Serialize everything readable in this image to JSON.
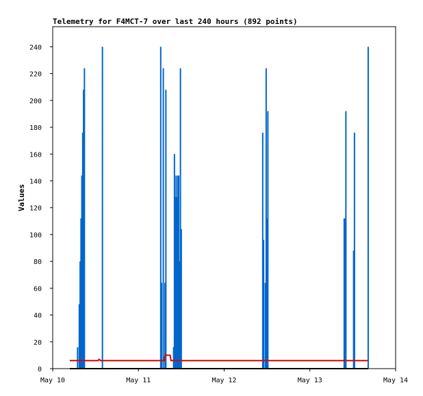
{
  "chart_data": {
    "type": "line",
    "title": "Telemetry for F4MCT-7 over last 240 hours (892 points)",
    "xlabel": "",
    "ylabel": "Values",
    "x_tick_labels": [
      "May 10",
      "May 11",
      "May 12",
      "May 13",
      "May 14"
    ],
    "x_range_days": [
      0,
      4
    ],
    "ylim": [
      0,
      255
    ],
    "y_ticks": [
      0,
      20,
      40,
      60,
      80,
      100,
      120,
      140,
      160,
      180,
      200,
      220,
      240
    ],
    "grid": false,
    "colors": {
      "spikes": "#0066cc",
      "baseline": "#e00000",
      "zero": "#000000",
      "axes": "#000000"
    },
    "series": [
      {
        "color": "#0066cc",
        "style": "spikes",
        "x_days": [
          0.29,
          0.31,
          0.32,
          0.33,
          0.34,
          0.35,
          0.36,
          0.37,
          0.58,
          1.26,
          1.27,
          1.29,
          1.31,
          1.32,
          1.41,
          1.42,
          1.43,
          1.44,
          1.45,
          1.46,
          1.47,
          1.48,
          1.49,
          1.5,
          2.45,
          2.46,
          2.48,
          2.49,
          2.5,
          2.51,
          3.4,
          3.41,
          3.42,
          3.51,
          3.52,
          3.68
        ],
        "values": [
          16,
          48,
          80,
          112,
          144,
          176,
          208,
          224,
          240,
          240,
          64,
          224,
          64,
          208,
          16,
          160,
          128,
          144,
          128,
          144,
          144,
          80,
          224,
          104,
          176,
          96,
          64,
          224,
          112,
          192,
          112,
          112,
          192,
          88,
          176,
          240
        ]
      },
      {
        "color": "#e00000",
        "style": "line",
        "x_days": [
          0.2,
          0.53,
          0.54,
          0.56,
          0.57,
          1.3,
          1.31,
          1.37,
          1.38,
          2.4,
          3.68
        ],
        "values": [
          6,
          6,
          7,
          6,
          6,
          6,
          10,
          10,
          6,
          6,
          6
        ]
      },
      {
        "color": "#000000",
        "style": "line",
        "x_days": [
          0.2,
          3.68
        ],
        "values": [
          0,
          0
        ]
      }
    ]
  }
}
